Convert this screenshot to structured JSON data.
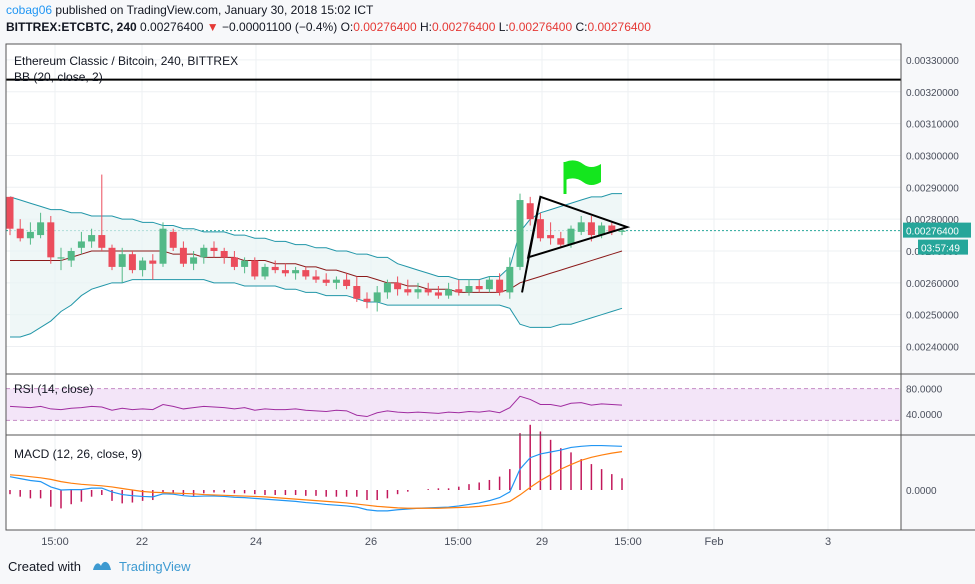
{
  "header": {
    "user": "cobag06",
    "published_text": "published on TradingView.com, January 30, 2018 15:02 ICT",
    "symbol": "BITTREX:ETCBTC, 240",
    "last": "0.00276400",
    "change_arrow": "▼",
    "change": "−0.00001100 (−0.4%)",
    "o_label": "O:",
    "o_val": "0.00276400",
    "h_label": "H:",
    "h_val": "0.00276400",
    "l_label": "L:",
    "l_val": "0.00276400",
    "c_label": "C:",
    "c_val": "0.00276400"
  },
  "main_pane": {
    "title": "Ethereum Classic / Bitcoin, 240, BITTREX",
    "indicator": "BB (20, close, 2)",
    "price_ticks": [
      "0.00330000",
      "0.00320000",
      "0.00310000",
      "0.00300000",
      "0.00290000",
      "0.00280000",
      "0.00270000",
      "0.00260000",
      "0.00250000",
      "0.00240000"
    ],
    "price_tick_values": [
      0.0033,
      0.0032,
      0.0031,
      0.003,
      0.0029,
      0.0028,
      0.0027,
      0.0026,
      0.0025,
      0.0024
    ],
    "last_price_label": "0.00276400",
    "countdown_label": "03:57:49",
    "horizontal_line_value": 0.003238
  },
  "rsi_pane": {
    "title": "RSI (14, close)",
    "ticks": [
      "80.0000",
      "40.0000"
    ]
  },
  "macd_pane": {
    "title": "MACD (12, 26, close, 9)",
    "ticks": [
      "0.0000"
    ]
  },
  "time_axis": [
    "15:00",
    "22",
    "24",
    "26",
    "15:00",
    "29",
    "15:00",
    "Feb",
    "3"
  ],
  "footer": {
    "created_with": "Created with",
    "brand": "TradingView"
  },
  "colors": {
    "up": "#53b987",
    "down": "#eb4d5c",
    "bb": "#2196a8",
    "basis": "#8b1a1a",
    "rsi": "#a02ca0",
    "macd": "#2196f3",
    "signal": "#ff7f0e",
    "flag": "#14e61e",
    "price_label": "#26a69a"
  },
  "chart_data": {
    "type": "candlestick",
    "title": "Ethereum Classic / Bitcoin, 240, BITTREX",
    "y_range": [
      0.00232,
      0.00335
    ],
    "candles": [
      {
        "o": 0.00287,
        "h": 0.00287,
        "l": 0.00275,
        "c": 0.00277
      },
      {
        "o": 0.00277,
        "h": 0.0028,
        "l": 0.00273,
        "c": 0.00274
      },
      {
        "o": 0.00274,
        "h": 0.00279,
        "l": 0.00272,
        "c": 0.00276
      },
      {
        "o": 0.00275,
        "h": 0.00282,
        "l": 0.00274,
        "c": 0.00279
      },
      {
        "o": 0.00279,
        "h": 0.00281,
        "l": 0.00266,
        "c": 0.00268
      },
      {
        "o": 0.00268,
        "h": 0.00271,
        "l": 0.00264,
        "c": 0.00268
      },
      {
        "o": 0.00267,
        "h": 0.00271,
        "l": 0.00265,
        "c": 0.0027
      },
      {
        "o": 0.00271,
        "h": 0.00276,
        "l": 0.00269,
        "c": 0.00273
      },
      {
        "o": 0.00273,
        "h": 0.00277,
        "l": 0.00271,
        "c": 0.00275
      },
      {
        "o": 0.00275,
        "h": 0.00294,
        "l": 0.0027,
        "c": 0.00271
      },
      {
        "o": 0.00271,
        "h": 0.00272,
        "l": 0.00264,
        "c": 0.00265
      },
      {
        "o": 0.00265,
        "h": 0.00271,
        "l": 0.0026,
        "c": 0.00269
      },
      {
        "o": 0.00269,
        "h": 0.0027,
        "l": 0.00263,
        "c": 0.00264
      },
      {
        "o": 0.00264,
        "h": 0.00268,
        "l": 0.00262,
        "c": 0.00267
      },
      {
        "o": 0.00267,
        "h": 0.00269,
        "l": 0.00261,
        "c": 0.00266
      },
      {
        "o": 0.00266,
        "h": 0.00279,
        "l": 0.00265,
        "c": 0.00277
      },
      {
        "o": 0.00276,
        "h": 0.00277,
        "l": 0.0027,
        "c": 0.00271
      },
      {
        "o": 0.00271,
        "h": 0.00273,
        "l": 0.00265,
        "c": 0.00266
      },
      {
        "o": 0.00266,
        "h": 0.0027,
        "l": 0.00264,
        "c": 0.00268
      },
      {
        "o": 0.00268,
        "h": 0.00272,
        "l": 0.00266,
        "c": 0.00271
      },
      {
        "o": 0.00271,
        "h": 0.00273,
        "l": 0.00268,
        "c": 0.0027
      },
      {
        "o": 0.0027,
        "h": 0.00271,
        "l": 0.00266,
        "c": 0.00268
      },
      {
        "o": 0.00268,
        "h": 0.0027,
        "l": 0.00264,
        "c": 0.00265
      },
      {
        "o": 0.00265,
        "h": 0.00268,
        "l": 0.00263,
        "c": 0.00267
      },
      {
        "o": 0.00267,
        "h": 0.00268,
        "l": 0.00261,
        "c": 0.00262
      },
      {
        "o": 0.00262,
        "h": 0.00266,
        "l": 0.00261,
        "c": 0.00265
      },
      {
        "o": 0.00265,
        "h": 0.00267,
        "l": 0.00263,
        "c": 0.00264
      },
      {
        "o": 0.00264,
        "h": 0.00266,
        "l": 0.00262,
        "c": 0.00263
      },
      {
        "o": 0.00263,
        "h": 0.00265,
        "l": 0.00261,
        "c": 0.00264
      },
      {
        "o": 0.00264,
        "h": 0.00265,
        "l": 0.00261,
        "c": 0.00262
      },
      {
        "o": 0.00262,
        "h": 0.00264,
        "l": 0.0026,
        "c": 0.00261
      },
      {
        "o": 0.00261,
        "h": 0.00263,
        "l": 0.00259,
        "c": 0.0026
      },
      {
        "o": 0.0026,
        "h": 0.00262,
        "l": 0.00258,
        "c": 0.00261
      },
      {
        "o": 0.00261,
        "h": 0.00263,
        "l": 0.00258,
        "c": 0.00259
      },
      {
        "o": 0.00259,
        "h": 0.00262,
        "l": 0.00254,
        "c": 0.00255
      },
      {
        "o": 0.00255,
        "h": 0.00257,
        "l": 0.00252,
        "c": 0.00254
      },
      {
        "o": 0.00254,
        "h": 0.00259,
        "l": 0.00251,
        "c": 0.00257
      },
      {
        "o": 0.00257,
        "h": 0.00261,
        "l": 0.00255,
        "c": 0.0026
      },
      {
        "o": 0.0026,
        "h": 0.00262,
        "l": 0.00256,
        "c": 0.00258
      },
      {
        "o": 0.00258,
        "h": 0.00261,
        "l": 0.00256,
        "c": 0.00257
      },
      {
        "o": 0.00257,
        "h": 0.0026,
        "l": 0.00255,
        "c": 0.00258
      },
      {
        "o": 0.00258,
        "h": 0.0026,
        "l": 0.00256,
        "c": 0.00257
      },
      {
        "o": 0.00257,
        "h": 0.00259,
        "l": 0.00255,
        "c": 0.00256
      },
      {
        "o": 0.00256,
        "h": 0.0026,
        "l": 0.00255,
        "c": 0.00258
      },
      {
        "o": 0.00258,
        "h": 0.00261,
        "l": 0.00256,
        "c": 0.00257
      },
      {
        "o": 0.00257,
        "h": 0.00261,
        "l": 0.00256,
        "c": 0.00259
      },
      {
        "o": 0.00259,
        "h": 0.00261,
        "l": 0.00257,
        "c": 0.00258
      },
      {
        "o": 0.00258,
        "h": 0.00262,
        "l": 0.00257,
        "c": 0.00261
      },
      {
        "o": 0.00261,
        "h": 0.00263,
        "l": 0.00256,
        "c": 0.00257
      },
      {
        "o": 0.00257,
        "h": 0.00268,
        "l": 0.00255,
        "c": 0.00265
      },
      {
        "o": 0.00265,
        "h": 0.00288,
        "l": 0.00264,
        "c": 0.00286
      },
      {
        "o": 0.00285,
        "h": 0.00287,
        "l": 0.00278,
        "c": 0.0028
      },
      {
        "o": 0.0028,
        "h": 0.00282,
        "l": 0.00273,
        "c": 0.00274
      },
      {
        "o": 0.00275,
        "h": 0.00279,
        "l": 0.00272,
        "c": 0.00274
      },
      {
        "o": 0.00274,
        "h": 0.00276,
        "l": 0.00271,
        "c": 0.00272
      },
      {
        "o": 0.00272,
        "h": 0.00278,
        "l": 0.00271,
        "c": 0.00277
      },
      {
        "o": 0.00276,
        "h": 0.00281,
        "l": 0.00275,
        "c": 0.00279
      },
      {
        "o": 0.00279,
        "h": 0.00281,
        "l": 0.00273,
        "c": 0.00275
      },
      {
        "o": 0.00275,
        "h": 0.00279,
        "l": 0.00274,
        "c": 0.00278
      },
      {
        "o": 0.00278,
        "h": 0.00279,
        "l": 0.00275,
        "c": 0.00276
      },
      {
        "o": 0.00276,
        "h": 0.00277,
        "l": 0.00275,
        "c": 0.002764
      }
    ],
    "bb_upper": [
      0.00287,
      0.00286,
      0.00285,
      0.00284,
      0.00283,
      0.00283,
      0.00282,
      0.00282,
      0.00281,
      0.00281,
      0.00281,
      0.0028,
      0.0028,
      0.00279,
      0.00279,
      0.00278,
      0.00278,
      0.00277,
      0.00277,
      0.00276,
      0.00276,
      0.00276,
      0.00275,
      0.00275,
      0.00274,
      0.00274,
      0.00273,
      0.00273,
      0.00272,
      0.00272,
      0.00271,
      0.00271,
      0.0027,
      0.0027,
      0.00269,
      0.00269,
      0.00268,
      0.00268,
      0.00266,
      0.00265,
      0.00264,
      0.00263,
      0.00262,
      0.00262,
      0.00261,
      0.00261,
      0.00261,
      0.00262,
      0.00262,
      0.00265,
      0.00276,
      0.0028,
      0.00282,
      0.00283,
      0.00284,
      0.00285,
      0.00286,
      0.00287,
      0.00287,
      0.00288,
      0.00288
    ],
    "bb_lower": [
      0.00243,
      0.00243,
      0.00244,
      0.00246,
      0.00248,
      0.00251,
      0.00253,
      0.00256,
      0.00258,
      0.00259,
      0.0026,
      0.0026,
      0.00261,
      0.00261,
      0.00261,
      0.00261,
      0.00261,
      0.00261,
      0.00261,
      0.00261,
      0.0026,
      0.0026,
      0.0026,
      0.00259,
      0.00259,
      0.00259,
      0.00259,
      0.00258,
      0.00258,
      0.00257,
      0.00257,
      0.00256,
      0.00256,
      0.00256,
      0.00255,
      0.00254,
      0.00254,
      0.00253,
      0.00253,
      0.00253,
      0.00253,
      0.00253,
      0.00253,
      0.00253,
      0.00253,
      0.00253,
      0.00253,
      0.00253,
      0.00253,
      0.00252,
      0.00247,
      0.00246,
      0.00246,
      0.00246,
      0.00247,
      0.00247,
      0.00248,
      0.00249,
      0.0025,
      0.00251,
      0.00252
    ],
    "bb_basis": [
      0.00267,
      0.00267,
      0.00267,
      0.00267,
      0.00267,
      0.00267,
      0.00268,
      0.00269,
      0.0027,
      0.0027,
      0.0027,
      0.0027,
      0.0027,
      0.0027,
      0.0027,
      0.0027,
      0.00269,
      0.00269,
      0.00269,
      0.00268,
      0.00268,
      0.00268,
      0.00268,
      0.00267,
      0.00267,
      0.00267,
      0.00266,
      0.00266,
      0.00266,
      0.00265,
      0.00265,
      0.00264,
      0.00264,
      0.00263,
      0.00262,
      0.00262,
      0.00261,
      0.0026,
      0.0026,
      0.00259,
      0.00259,
      0.00258,
      0.00258,
      0.00258,
      0.00257,
      0.00257,
      0.00257,
      0.00257,
      0.00257,
      0.00258,
      0.0026,
      0.00261,
      0.00262,
      0.00263,
      0.00264,
      0.00265,
      0.00266,
      0.00267,
      0.00268,
      0.00269,
      0.0027
    ],
    "rsi": [
      52,
      51,
      50,
      52,
      48,
      47,
      49,
      50,
      52,
      51,
      46,
      49,
      47,
      48,
      47,
      55,
      52,
      48,
      50,
      52,
      51,
      50,
      48,
      50,
      46,
      48,
      47,
      47,
      48,
      46,
      45,
      44,
      46,
      45,
      38,
      36,
      42,
      45,
      43,
      42,
      43,
      42,
      41,
      43,
      42,
      44,
      43,
      45,
      42,
      50,
      68,
      63,
      55,
      55,
      52,
      57,
      58,
      54,
      56,
      55,
      54
    ],
    "macd": [
      0.35,
      0.3,
      0.25,
      0.22,
      0.08,
      0.0,
      0.01,
      0.01,
      0.05,
      0.05,
      -0.05,
      -0.12,
      -0.15,
      -0.17,
      -0.18,
      -0.1,
      -0.11,
      -0.15,
      -0.17,
      -0.16,
      -0.16,
      -0.17,
      -0.19,
      -0.2,
      -0.22,
      -0.24,
      -0.26,
      -0.28,
      -0.3,
      -0.33,
      -0.35,
      -0.38,
      -0.4,
      -0.42,
      -0.45,
      -0.52,
      -0.55,
      -0.55,
      -0.52,
      -0.5,
      -0.48,
      -0.47,
      -0.46,
      -0.45,
      -0.42,
      -0.38,
      -0.34,
      -0.28,
      -0.2,
      -0.05,
      0.55,
      0.85,
      0.95,
      1.0,
      1.05,
      1.12,
      1.15,
      1.17,
      1.17,
      1.16,
      1.15
    ],
    "signal": [
      0.4,
      0.38,
      0.35,
      0.32,
      0.28,
      0.22,
      0.18,
      0.15,
      0.13,
      0.11,
      0.08,
      0.04,
      0.0,
      -0.04,
      -0.06,
      -0.07,
      -0.08,
      -0.09,
      -0.1,
      -0.12,
      -0.13,
      -0.14,
      -0.15,
      -0.16,
      -0.17,
      -0.18,
      -0.2,
      -0.22,
      -0.24,
      -0.26,
      -0.28,
      -0.3,
      -0.32,
      -0.34,
      -0.37,
      -0.4,
      -0.43,
      -0.45,
      -0.47,
      -0.48,
      -0.48,
      -0.48,
      -0.48,
      -0.47,
      -0.46,
      -0.45,
      -0.43,
      -0.4,
      -0.36,
      -0.3,
      -0.13,
      0.07,
      0.25,
      0.4,
      0.55,
      0.67,
      0.78,
      0.86,
      0.92,
      0.97,
      1.01
    ],
    "triangle_points": [
      [
        50.2,
        0.00257
      ],
      [
        52.0,
        0.00287
      ],
      [
        60.5,
        0.002775
      ],
      [
        50.8,
        0.00268
      ]
    ]
  }
}
